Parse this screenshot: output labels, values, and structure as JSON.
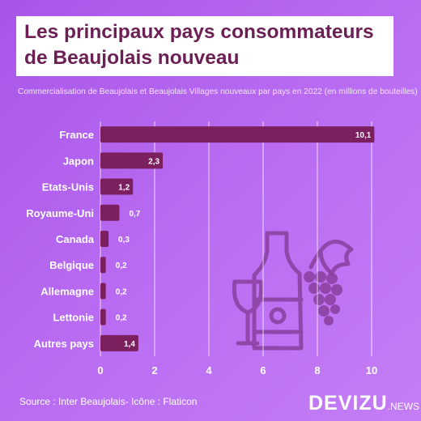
{
  "title": {
    "line1": "Les principaux pays consommateurs",
    "line2": "de Beaujolais nouveau"
  },
  "subtitle": "Commercialisation de Beaujolais et Beaujolais Villages nouveaux par pays en 2022 (en millions de bouteilles)",
  "footer": {
    "source": "Source : Inter Beaujolais- Icône : Flaticon"
  },
  "logo": {
    "main": "DEVIZU",
    "sub": ".NEWS"
  },
  "colors": {
    "bar": "#7b1f5e",
    "title_text": "#6b1f54",
    "grid": "#ffffff"
  },
  "icon": "wine-bottle-glass-grapes-icon",
  "chart_data": {
    "type": "bar",
    "orientation": "horizontal",
    "categories": [
      "France",
      "Japon",
      "Etats-Unis",
      "Royaume-Uni",
      "Canada",
      "Belgique",
      "Allemagne",
      "Lettonie",
      "Autres pays"
    ],
    "values": [
      10.1,
      2.3,
      1.2,
      0.7,
      0.3,
      0.2,
      0.2,
      0.2,
      1.4
    ],
    "value_labels": [
      "10,1",
      "2,3",
      "1,2",
      "0,7",
      "0,3",
      "0,2",
      "0,2",
      "0,2",
      "1,4"
    ],
    "xlim": [
      0,
      10
    ],
    "xticks": [
      0,
      2,
      4,
      6,
      8,
      10
    ],
    "xtick_labels": [
      "0",
      "2",
      "4",
      "6",
      "8",
      "10"
    ],
    "grid": true,
    "title": "Les principaux pays consommateurs de Beaujolais nouveau",
    "xlabel": "",
    "ylabel": ""
  }
}
